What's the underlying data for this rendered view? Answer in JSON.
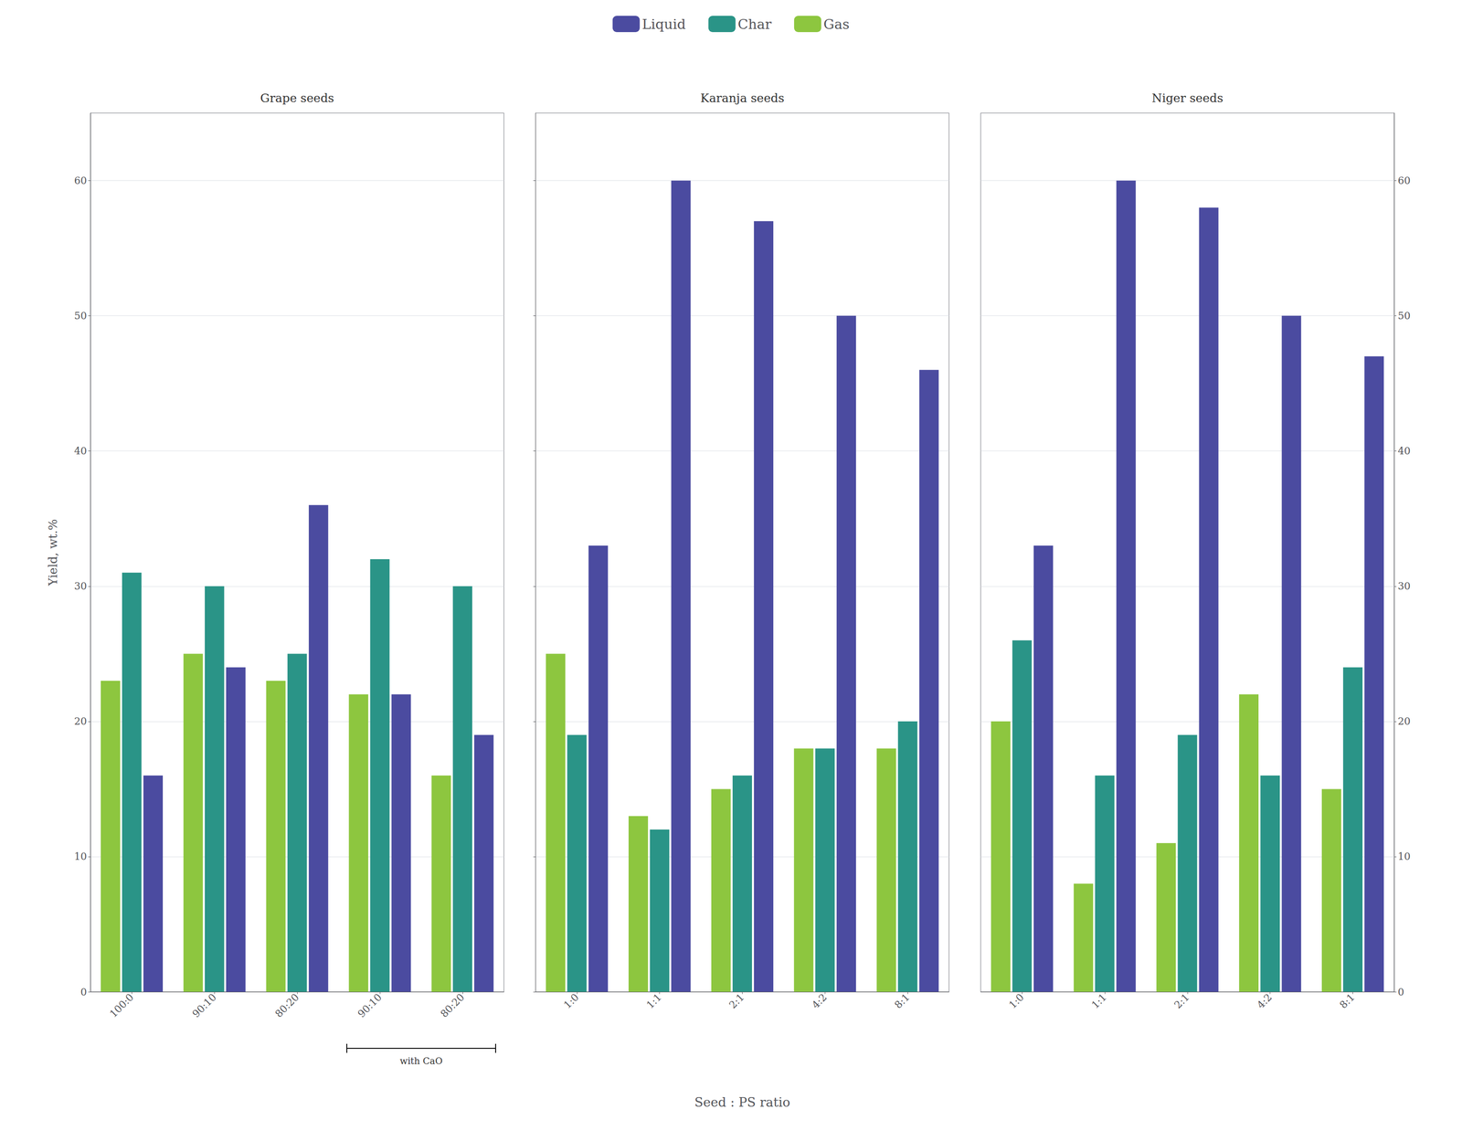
{
  "chart_data": [
    {
      "type": "bar",
      "title": "Grape seeds",
      "categories": [
        "100:0",
        "90:10",
        "80:20",
        "90:10",
        "80:20"
      ],
      "series": [
        {
          "name": "Gas",
          "color": "#8DC63F",
          "values": [
            23,
            25,
            23,
            22,
            16
          ]
        },
        {
          "name": "Char",
          "color": "#2A9487",
          "values": [
            31,
            30,
            25,
            32,
            30
          ]
        },
        {
          "name": "Liquid",
          "color": "#4B4BA0",
          "values": [
            16,
            24,
            36,
            22,
            19
          ]
        }
      ],
      "ylim": [
        0,
        65
      ],
      "yticks": [
        0,
        10,
        20,
        30,
        40,
        50,
        60
      ],
      "ylabel": "Yield, wt.%",
      "grid": true,
      "legend": "top",
      "annotations": [
        {
          "text": "with CaO",
          "x": [
            3,
            4
          ]
        }
      ]
    },
    {
      "type": "bar",
      "title": "Karanja seeds",
      "categories": [
        "1:0",
        "1:1",
        "2:1",
        "4:2",
        "8:1"
      ],
      "series": [
        {
          "name": "Gas",
          "color": "#8DC63F",
          "values": [
            25,
            13,
            15,
            18,
            18
          ]
        },
        {
          "name": "Char",
          "color": "#2A9487",
          "values": [
            19,
            12,
            16,
            18,
            20
          ]
        },
        {
          "name": "Liquid",
          "color": "#4B4BA0",
          "values": [
            33,
            60,
            57,
            50,
            46
          ]
        }
      ],
      "ylim": [
        0,
        65
      ],
      "yticks": [
        0,
        10,
        20,
        30,
        40,
        50,
        60
      ],
      "xlabel": "Seed : PS ratio",
      "grid": true,
      "tick_labels": "x"
    },
    {
      "type": "bar",
      "title": "Niger seeds",
      "categories": [
        "1:0",
        "1:1",
        "2:1",
        "4:2",
        "8:1"
      ],
      "series": [
        {
          "name": "Gas",
          "color": "#8DC63F",
          "values": [
            20,
            8,
            11,
            22,
            15
          ]
        },
        {
          "name": "Char",
          "color": "#2A9487",
          "values": [
            26,
            16,
            19,
            16,
            24
          ]
        },
        {
          "name": "Liquid",
          "color": "#4B4BA0",
          "values": [
            33,
            60,
            58,
            50,
            47
          ]
        }
      ],
      "ylim": [
        0,
        65
      ],
      "yticks": [
        0,
        10,
        20,
        30,
        40,
        50,
        60
      ],
      "grid": true
    }
  ]
}
